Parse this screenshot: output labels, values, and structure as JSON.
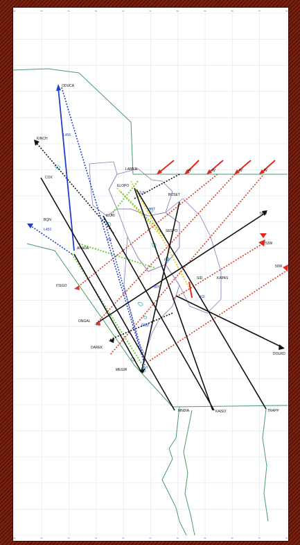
{
  "map": {
    "border_color": "#4c9a6e",
    "sector_color": "#8878b8",
    "water_color": "#3cb0c8",
    "grid_color": "#dde6ee",
    "waypoints": [
      {
        "id": "oduca",
        "label": "ODUCA"
      },
      {
        "id": "kinch",
        "label": "KINCH"
      },
      {
        "id": "cox",
        "label": "COX"
      },
      {
        "id": "bqn",
        "label": "BQN"
      },
      {
        "id": "anada",
        "label": "ANADA"
      },
      {
        "id": "itego",
        "label": "ITEGO"
      },
      {
        "id": "ongal",
        "label": "ONGAL"
      },
      {
        "id": "darek",
        "label": "DAREK"
      },
      {
        "id": "megir",
        "label": "MEGIR"
      },
      {
        "id": "mndia",
        "label": "MNDIA"
      },
      {
        "id": "kaiso",
        "label": "KAISO"
      },
      {
        "id": "trapp",
        "label": "TRAPP"
      },
      {
        "id": "dolro",
        "label": "DOLRO"
      },
      {
        "id": "lamkn",
        "label": "LAMKN"
      },
      {
        "id": "elopo",
        "label": "ELOPO"
      },
      {
        "id": "boset",
        "label": "BOSET"
      },
      {
        "id": "sespo",
        "label": "SESPO"
      },
      {
        "id": "iluri",
        "label": "ILURI"
      },
      {
        "id": "sid",
        "label": "SID"
      },
      {
        "id": "kapas",
        "label": "KAPAS"
      },
      {
        "id": "bgi",
        "label": "BGI"
      },
      {
        "id": "sju",
        "label": "SJU"
      },
      {
        "id": "stt",
        "label": "STT"
      },
      {
        "id": "pr",
        "label": "PR"
      },
      {
        "id": "bpr",
        "label": "BPR"
      },
      {
        "id": "gnd",
        "label": "GND"
      },
      {
        "id": "hp",
        "label": "HP"
      },
      {
        "id": "svi",
        "label": "SVI"
      },
      {
        "id": "w56",
        "label": "56W"
      },
      {
        "id": "w53",
        "label": "53W"
      },
      {
        "id": "w50",
        "label": "50W"
      },
      {
        "id": "w1",
        "label": "W"
      },
      {
        "id": "w2",
        "label": "W"
      },
      {
        "id": "w3",
        "label": "W"
      },
      {
        "id": "w4",
        "label": "W"
      }
    ],
    "airways": [
      {
        "id": "l455",
        "label": "L455"
      },
      {
        "id": "l452",
        "label": "L452"
      }
    ],
    "ticks": [
      "68",
      "65",
      "64",
      "63",
      "62",
      "61",
      "60",
      "59",
      "58",
      "57",
      "56"
    ]
  }
}
